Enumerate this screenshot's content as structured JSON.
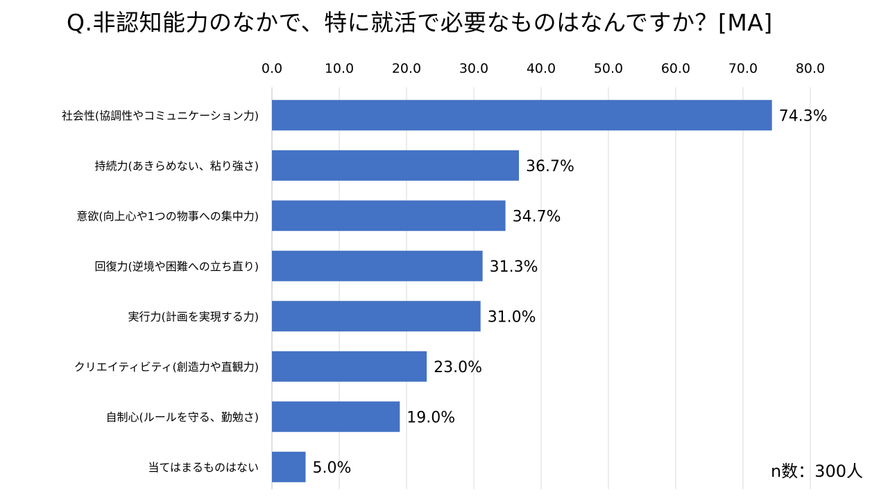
{
  "title": "Q.非認知能力のなかで、特に就活で必要なものはなんですか？[MA]",
  "note": "n数：300人",
  "chart_data": {
    "type": "bar",
    "orientation": "horizontal",
    "title": "Q.非認知能力のなかで、特に就活で必要なものはなんですか？[MA]",
    "categories": [
      "社会性(協調性やコミュニケーション力)",
      "持続力(あきらめない、粘り強さ)",
      "意欲(向上心や1つの物事への集中力)",
      "回復力(逆境や困難への立ち直り)",
      "実行力(計画を実現する力)",
      "クリエイティビティ(創造力や直観力)",
      "自制心(ルールを守る、勤勉さ)",
      "当てはまるものはない"
    ],
    "values": [
      74.3,
      36.7,
      34.7,
      31.3,
      31.0,
      23.0,
      19.0,
      5.0
    ],
    "data_labels": [
      "74.3%",
      "36.7%",
      "34.7%",
      "31.3%",
      "31.0%",
      "23.0%",
      "19.0%",
      "5.0%"
    ],
    "xlim": [
      0,
      80
    ],
    "x_ticks": [
      "0.0",
      "10.0",
      "20.0",
      "30.0",
      "40.0",
      "50.0",
      "60.0",
      "70.0",
      "80.0"
    ],
    "axis_position": "top",
    "grid": true,
    "bar_color": "#4472C4",
    "grid_color": "#D9D9D9"
  }
}
